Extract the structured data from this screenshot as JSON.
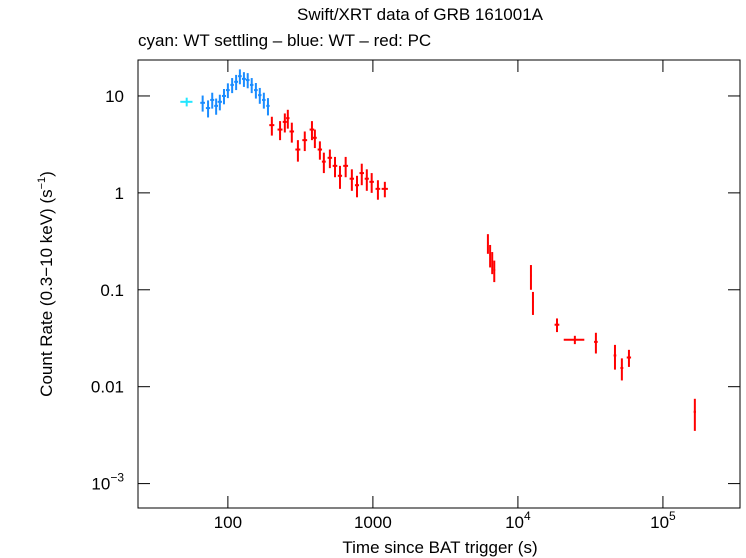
{
  "chart_data": {
    "type": "scatter",
    "title": "Swift/XRT data of GRB 161001A",
    "subtitle": "cyan: WT settling – blue: WT – red: PC",
    "x_label": "Time since BAT trigger (s)",
    "y_label": {
      "text": "Count Rate (0.3−10 keV) (s",
      "exponent": "−1",
      "suffix": ")"
    },
    "xscale": "log",
    "yscale": "log",
    "xlim": [
      24,
      340000
    ],
    "ylim": [
      0.00056,
      23.5
    ],
    "xticks": [
      100,
      1000,
      {
        "value": 10000,
        "label": "10",
        "exponent": "4"
      },
      {
        "value": 100000,
        "label": "10",
        "exponent": "5"
      }
    ],
    "yticks": [
      {
        "value": 0.001,
        "label": "10",
        "exponent": "−3"
      },
      0.01,
      0.1,
      1,
      10
    ],
    "series": [
      {
        "name": "WT settling",
        "color": "#22e6ff",
        "x": [
          52
        ],
        "values": [
          8.7
        ],
        "xerr": [
          5
        ],
        "yerr": [
          0.9
        ]
      },
      {
        "name": "WT",
        "color": "#1a8cff",
        "x": [
          67,
          73,
          78,
          83,
          88,
          94,
          100,
          107,
          114,
          121,
          129,
          137,
          146,
          156,
          166,
          177,
          189
        ],
        "values": [
          8.5,
          7.5,
          9.1,
          7.9,
          8.7,
          10,
          11.5,
          13,
          14,
          16,
          15,
          14.6,
          13,
          11.5,
          10.2,
          9.1,
          7.9
        ],
        "xerr": [
          2.5,
          2.5,
          2.5,
          2.5,
          3,
          3,
          3,
          3,
          3.5,
          3.5,
          4,
          4,
          4,
          4.5,
          4.5,
          5,
          5
        ],
        "yerr": [
          1.6,
          1.5,
          1.7,
          1.5,
          1.6,
          1.8,
          2.0,
          2.3,
          2.5,
          2.8,
          2.6,
          2.6,
          2.3,
          2.1,
          1.9,
          1.7,
          1.6
        ]
      },
      {
        "name": "PC",
        "color": "#ff0000",
        "x": [
          201,
          229,
          247,
          259,
          276,
          304,
          339,
          380,
          398,
          431,
          459,
          505,
          548,
          593,
          649,
          716,
          777,
          838,
          908,
          981,
          1083,
          1209,
          6210,
          6432,
          6650,
          6870,
          12300,
          12700,
          18600,
          24700,
          34500,
          46700,
          52100,
          58300,
          166000
        ],
        "values": [
          5.0,
          4.5,
          5.4,
          5.9,
          4.3,
          2.8,
          3.5,
          4.5,
          3.7,
          2.8,
          2.1,
          2.3,
          1.9,
          1.5,
          1.9,
          1.4,
          1.2,
          1.6,
          1.4,
          1.3,
          1.1,
          1.1,
          0.305,
          0.23,
          0.195,
          0.16,
          0.14,
          0.075,
          0.0436,
          0.0305,
          0.029,
          0.021,
          0.0156,
          0.02,
          0.0055
        ],
        "xerr": [
          8,
          9,
          8,
          7,
          10,
          12,
          13,
          14,
          12,
          15,
          14,
          18,
          20,
          20,
          25,
          25,
          25,
          30,
          30,
          35,
          40,
          60,
          80,
          80,
          80,
          100,
          150,
          150,
          700,
          4000,
          1000,
          1000,
          1200,
          2000,
          3000
        ],
        "yerr": [
          1.1,
          1.0,
          1.2,
          1.3,
          1.0,
          0.7,
          0.8,
          1.0,
          0.8,
          0.6,
          0.5,
          0.5,
          0.45,
          0.4,
          0.45,
          0.35,
          0.3,
          0.4,
          0.35,
          0.3,
          0.25,
          0.2,
          0.07,
          0.06,
          0.05,
          0.04,
          0.04,
          0.02,
          0.007,
          0.003,
          0.007,
          0.006,
          0.004,
          0.004,
          0.002
        ]
      }
    ]
  }
}
